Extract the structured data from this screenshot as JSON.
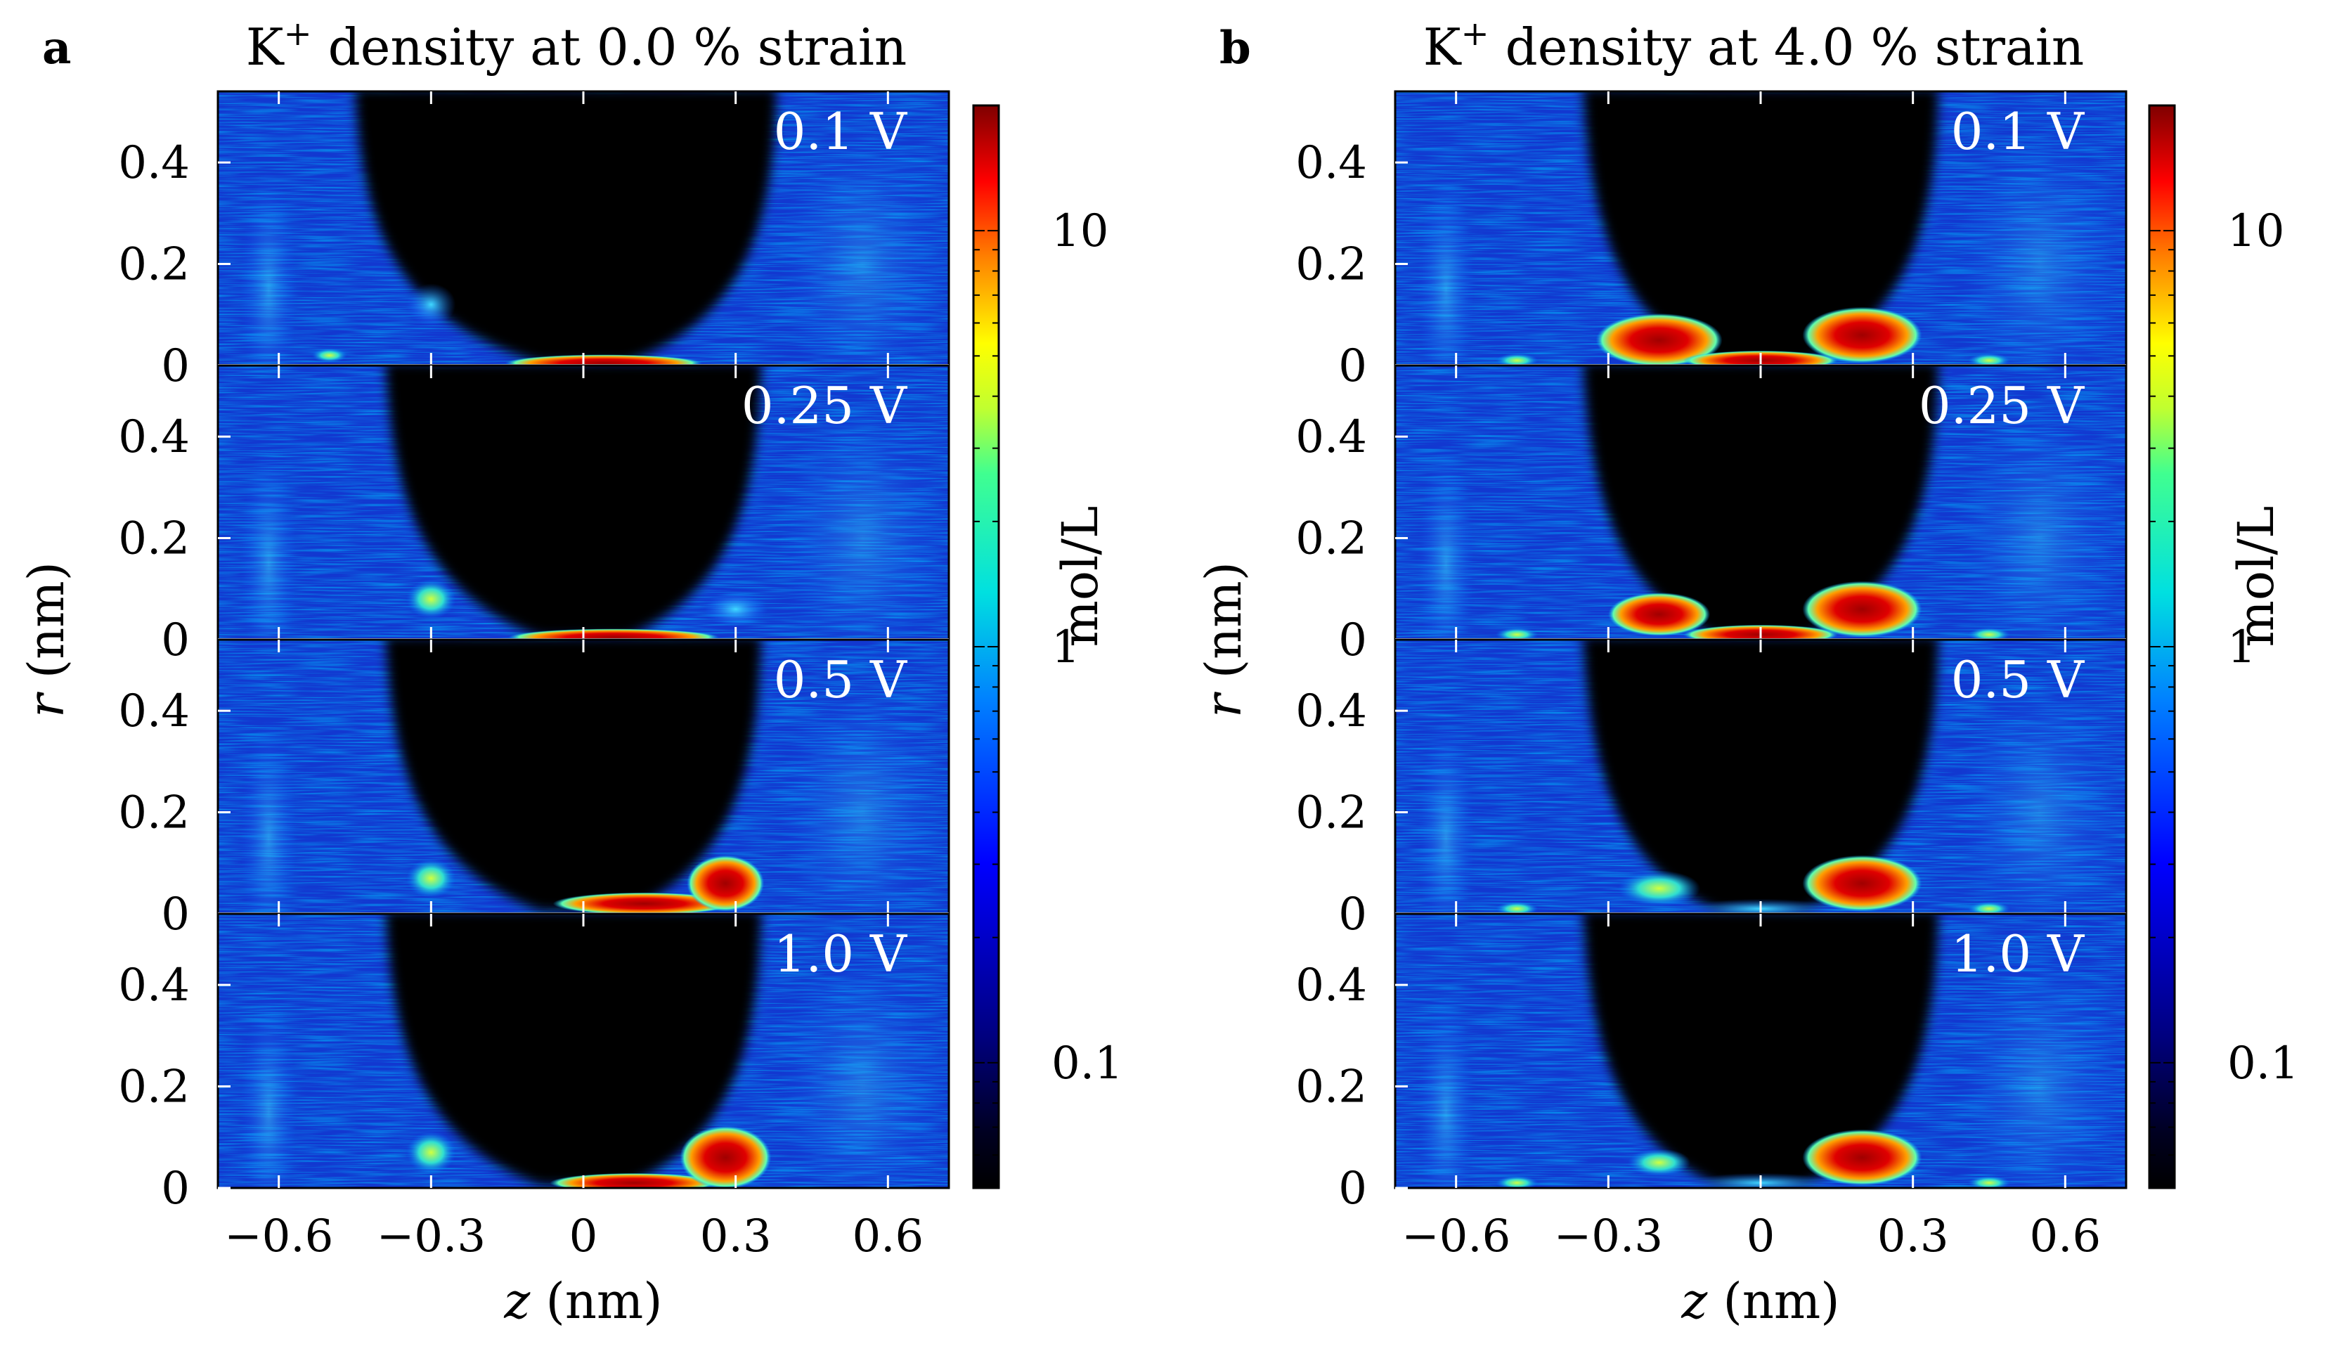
{
  "chart_data": {
    "type": "heatmap",
    "colormap": "jet (dark-blue to red, black below lower limit)",
    "color_scale": "log",
    "colorbar": {
      "label": "mol/L",
      "ticks": [
        {
          "value": 10,
          "label": "10"
        },
        {
          "value": 1,
          "label": "1"
        },
        {
          "value": 0.1,
          "label": "0.1"
        }
      ],
      "range": [
        0.05,
        20
      ]
    },
    "xlim": [
      -0.72,
      0.72
    ],
    "ylim": [
      0,
      0.54
    ],
    "xticks": [
      {
        "value": -0.6,
        "label": "−0.6"
      },
      {
        "value": -0.3,
        "label": "−0.3"
      },
      {
        "value": 0,
        "label": "0"
      },
      {
        "value": 0.3,
        "label": "0.3"
      },
      {
        "value": 0.6,
        "label": "0.6"
      }
    ],
    "yticks": [
      {
        "value": 0,
        "label": "0"
      },
      {
        "value": 0.2,
        "label": "0.2"
      },
      {
        "value": 0.4,
        "label": "0.4"
      }
    ],
    "xlabel": {
      "var": "z",
      "unit": "(nm)"
    },
    "ylabel": {
      "var": "r",
      "unit": "(nm)"
    },
    "panels": [
      {
        "letter": "a",
        "title_prefix": "K",
        "title_sup": "+",
        "title_suffix": " density at 0.0 % strain",
        "strain_percent": 0.0,
        "rows": [
          {
            "voltage_label": "0.1 V",
            "voltage": 0.1
          },
          {
            "voltage_label": "0.25 V",
            "voltage": 0.25
          },
          {
            "voltage_label": "0.5 V",
            "voltage": 0.5
          },
          {
            "voltage_label": "1.0 V",
            "voltage": 1.0
          }
        ]
      },
      {
        "letter": "b",
        "title_prefix": "K",
        "title_sup": "+",
        "title_suffix": " density at 4.0 % strain",
        "strain_percent": 4.0,
        "rows": [
          {
            "voltage_label": "0.1 V",
            "voltage": 0.1
          },
          {
            "voltage_label": "0.25 V",
            "voltage": 0.25
          },
          {
            "voltage_label": "0.5 V",
            "voltage": 0.5
          },
          {
            "voltage_label": "1.0 V",
            "voltage": 1.0
          }
        ]
      }
    ]
  }
}
